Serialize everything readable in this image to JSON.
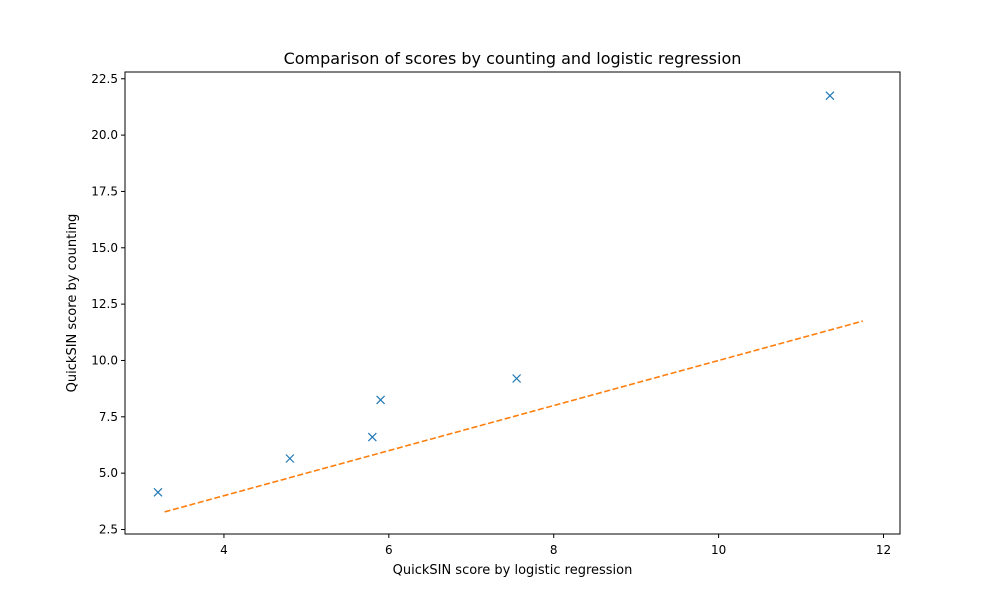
{
  "chart_data": {
    "type": "scatter",
    "title": "Comparison of scores by counting and logistic regression",
    "xlabel": "QuickSIN score by logistic regression",
    "ylabel": "QuickSIN score by counting",
    "xlim": [
      2.8,
      12.2
    ],
    "ylim": [
      2.3,
      22.8
    ],
    "xticks": [
      "4",
      "6",
      "8",
      "10",
      "12"
    ],
    "yticks": [
      "2.5",
      "5.0",
      "7.5",
      "10.0",
      "12.5",
      "15.0",
      "17.5",
      "20.0",
      "22.5"
    ],
    "grid": false,
    "series": [
      {
        "type": "scatter",
        "marker": "x",
        "color": "#1f77b4",
        "x": [
          3.2,
          4.8,
          5.8,
          5.9,
          7.55,
          11.35
        ],
        "y": [
          4.15,
          5.65,
          6.6,
          8.25,
          9.2,
          21.75
        ]
      },
      {
        "type": "line",
        "style": "dashed",
        "color": "#ff7f0e",
        "x": [
          3.28,
          11.75
        ],
        "y": [
          3.28,
          11.75
        ]
      }
    ]
  }
}
